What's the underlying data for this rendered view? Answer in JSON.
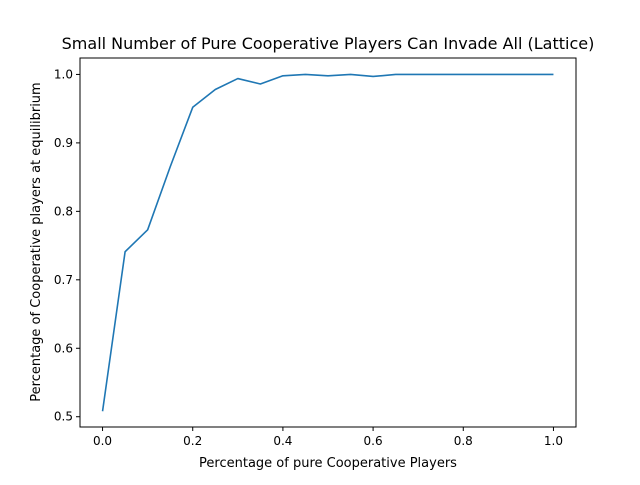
{
  "chart_data": {
    "type": "line",
    "title": "Small Number of Pure Cooperative Players Can Invade All (Lattice)",
    "xlabel": "Percentage of pure Cooperative Players",
    "ylabel": "Percentage of Cooperative players at equilibrium",
    "xlim": [
      -0.05,
      1.05
    ],
    "ylim": [
      0.485,
      1.024
    ],
    "grid": false,
    "legend": "none",
    "x_ticks": [
      0.0,
      0.2,
      0.4,
      0.6,
      0.8,
      1.0
    ],
    "x_tick_labels": [
      "0.0",
      "0.2",
      "0.4",
      "0.6",
      "0.8",
      "1.0"
    ],
    "y_ticks": [
      0.5,
      0.6,
      0.7,
      0.8,
      0.9,
      1.0
    ],
    "y_tick_labels": [
      "0.5",
      "0.6",
      "0.7",
      "0.8",
      "0.9",
      "1.0"
    ],
    "series": [
      {
        "color": "#1f77b4",
        "x": [
          0.0,
          0.05,
          0.1,
          0.15,
          0.2,
          0.25,
          0.3,
          0.35,
          0.4,
          0.45,
          0.5,
          0.55,
          0.6,
          0.65,
          0.7,
          0.75,
          0.8,
          0.85,
          0.9,
          0.95,
          1.0
        ],
        "y": [
          0.508,
          0.741,
          0.773,
          0.865,
          0.952,
          0.978,
          0.994,
          0.986,
          0.998,
          1.0,
          0.998,
          1.0,
          0.997,
          1.0,
          1.0,
          1.0,
          1.0,
          1.0,
          1.0,
          1.0,
          1.0
        ]
      }
    ]
  }
}
